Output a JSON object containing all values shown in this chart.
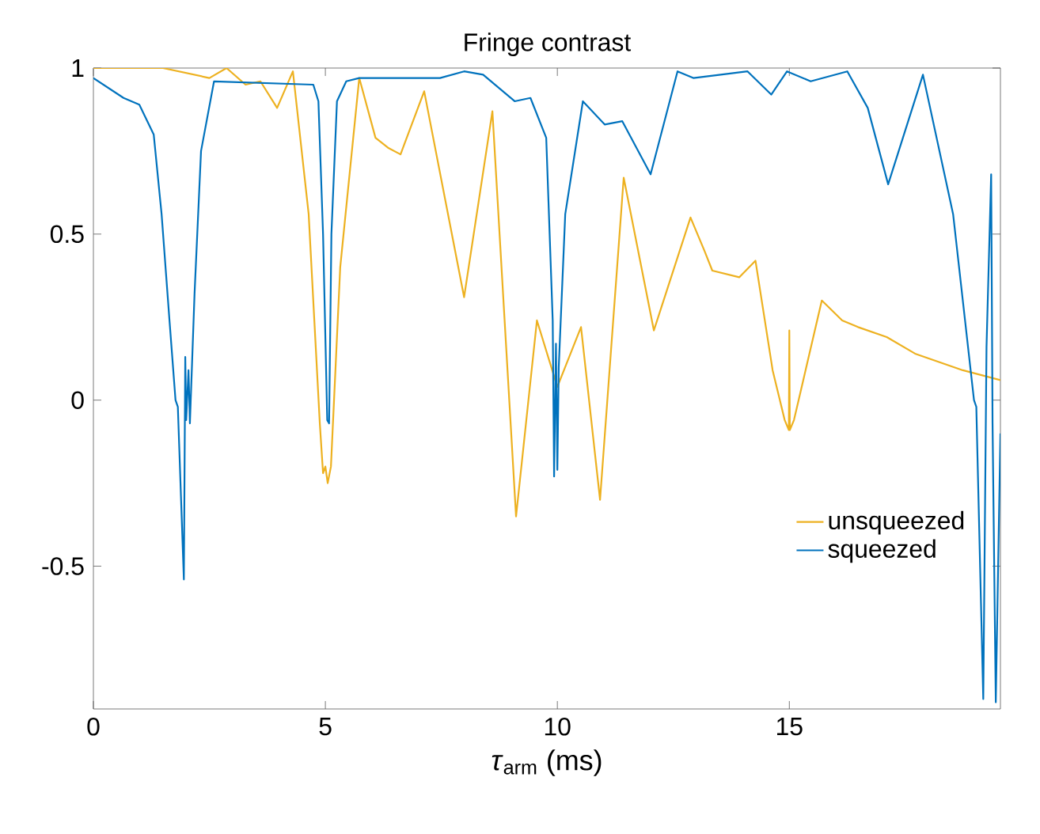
{
  "chart_data": {
    "type": "line",
    "title": "Fringe contrast",
    "xlabel": "*τ*$_{arm}$ (ms)",
    "xlim": [
      0,
      19.55
    ],
    "ylim": [
      -0.93,
      1
    ],
    "xticks": [
      0,
      5,
      10,
      15
    ],
    "yticks": [
      -0.5,
      0,
      0.5,
      1
    ],
    "grid": false,
    "legend": "right",
    "marker": "none",
    "line_style": "solid",
    "series": [
      {
        "name": "unsqueezed",
        "color": "#edb120",
        "x": [
          0,
          1.5,
          2.5,
          2.87,
          3.28,
          3.6,
          3.96,
          4.3,
          4.64,
          4.88,
          4.95,
          5.0,
          5.05,
          5.12,
          5.32,
          5.73,
          6.08,
          6.35,
          6.62,
          7.13,
          7.99,
          8.6,
          9.11,
          9.56,
          10.0,
          10.51,
          10.92,
          11.43,
          12.08,
          12.87,
          13.17,
          13.34,
          13.92,
          14.27,
          14.64,
          14.9,
          14.99,
          15.0,
          15.01,
          15.1,
          15.7,
          16.14,
          16.48,
          17.1,
          17.71,
          18.74,
          19.55
        ],
        "values": [
          1,
          1,
          0.97,
          1,
          0.95,
          0.96,
          0.88,
          0.99,
          0.56,
          -0.07,
          -0.22,
          -0.2,
          -0.25,
          -0.2,
          0.4,
          0.97,
          0.79,
          0.76,
          0.74,
          0.93,
          0.31,
          0.87,
          -0.35,
          0.24,
          0.04,
          0.22,
          -0.3,
          0.67,
          0.21,
          0.55,
          0.45,
          0.39,
          0.37,
          0.42,
          0.09,
          -0.06,
          -0.09,
          0.21,
          -0.09,
          -0.06,
          0.3,
          0.24,
          0.22,
          0.19,
          0.14,
          0.09,
          0.06
        ]
      },
      {
        "name": "squeezed",
        "color": "#0072bd",
        "x": [
          0,
          0.65,
          0.99,
          1.3,
          1.47,
          1.64,
          1.77,
          1.82,
          1.95,
          1.98,
          2.0,
          2.05,
          2.08,
          2.18,
          2.32,
          2.6,
          4.74,
          4.85,
          4.95,
          5.04,
          5.08,
          5.13,
          5.25,
          5.45,
          5.73,
          7.47,
          7.99,
          8.4,
          9.08,
          9.42,
          9.76,
          9.9,
          9.93,
          9.97,
          10.0,
          10.03,
          10.17,
          10.55,
          11.02,
          11.4,
          12.01,
          12.59,
          12.93,
          13.52,
          14.1,
          14.61,
          14.95,
          15.46,
          16.25,
          16.69,
          17.13,
          17.88,
          18.53,
          18.98,
          19.03,
          19.18,
          19.25,
          19.35,
          19.38,
          19.45,
          19.55
        ],
        "values": [
          0.97,
          0.91,
          0.89,
          0.8,
          0.56,
          0.24,
          0.0,
          -0.02,
          -0.54,
          0.13,
          -0.06,
          0.09,
          -0.07,
          0.32,
          0.75,
          0.96,
          0.95,
          0.9,
          0.5,
          -0.06,
          -0.07,
          0.5,
          0.9,
          0.96,
          0.97,
          0.97,
          0.99,
          0.98,
          0.9,
          0.91,
          0.79,
          0.24,
          -0.23,
          0.17,
          -0.21,
          0.1,
          0.56,
          0.9,
          0.83,
          0.84,
          0.68,
          0.99,
          0.97,
          0.98,
          0.99,
          0.92,
          0.99,
          0.96,
          0.99,
          0.88,
          0.65,
          0.98,
          0.56,
          0.0,
          -0.02,
          -0.9,
          0.16,
          0.68,
          -0.07,
          -0.91,
          -0.1
        ]
      }
    ]
  }
}
